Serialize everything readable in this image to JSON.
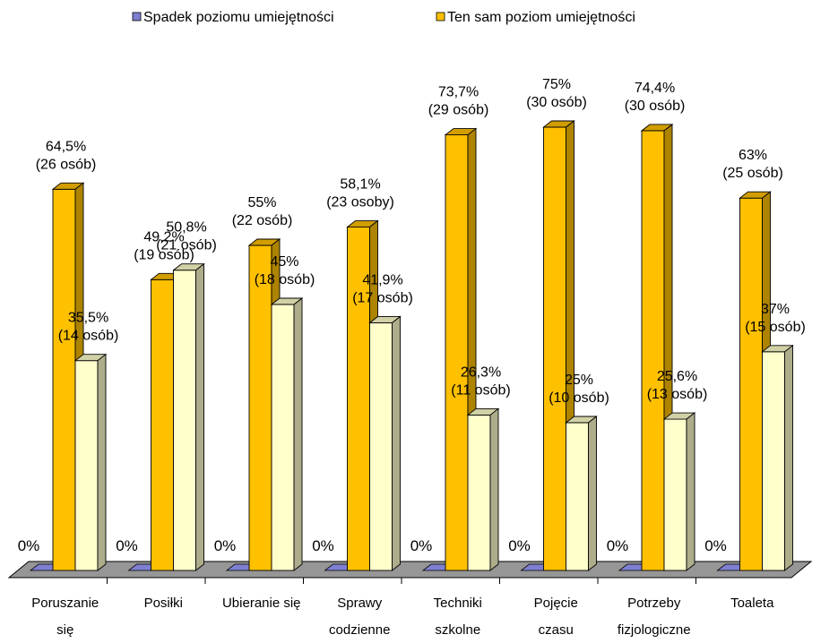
{
  "chart_data": {
    "type": "bar",
    "title": "",
    "xlabel": "",
    "ylabel": "",
    "ylim": [
      0,
      80
    ],
    "grid": false,
    "legend_position": "top",
    "categories": [
      [
        "Poruszanie",
        "się"
      ],
      [
        "Posiłki"
      ],
      [
        "Ubieranie się"
      ],
      [
        "Sprawy",
        "codzienne"
      ],
      [
        "Techniki",
        "szkolne"
      ],
      [
        "Pojęcie",
        "czasu"
      ],
      [
        "Potrzeby",
        "fizjologiczne"
      ],
      [
        "Toaleta"
      ]
    ],
    "series": [
      {
        "name": "Spadek poziomu umiejętności",
        "color": "#7f7fd1",
        "values": [
          0,
          0,
          0,
          0,
          0,
          0,
          0,
          0
        ],
        "labels": [
          [
            "0%"
          ],
          [
            "0%"
          ],
          [
            "0%"
          ],
          [
            "0%"
          ],
          [
            "0%"
          ],
          [
            "0%"
          ],
          [
            "0%"
          ],
          [
            "0%"
          ]
        ]
      },
      {
        "name": "Ten sam poziom umiejętności",
        "color": "#ffc000",
        "values": [
          64.5,
          49.2,
          55,
          58.1,
          73.7,
          75,
          74.4,
          63
        ],
        "labels": [
          [
            "64,5%",
            "(26 osób)"
          ],
          [
            "49,2%",
            "(19 osób)"
          ],
          [
            "55%",
            "(22 osób)"
          ],
          [
            "58,1%",
            "(23 osoby)"
          ],
          [
            "73,7%",
            "(29 osób)"
          ],
          [
            "75%",
            "(30 osób)"
          ],
          [
            "74,4%",
            "(30 osób)"
          ],
          [
            "63%",
            "(25 osób)"
          ]
        ]
      },
      {
        "name": "",
        "color": "#ffffcc",
        "values": [
          35.5,
          50.8,
          45,
          41.9,
          26.3,
          25,
          25.6,
          37
        ],
        "labels": [
          [
            "35,5%",
            "(14 osób)"
          ],
          [
            "50,8%",
            "(21 osób)"
          ],
          [
            "45%",
            "(18 osób)"
          ],
          [
            "41,9%",
            "(17 osób)"
          ],
          [
            "26,3%",
            "(11 osób)"
          ],
          [
            "25%",
            "(10 osób)"
          ],
          [
            "25,6%",
            "(13 osób)"
          ],
          [
            "37%",
            "(15 osób)"
          ]
        ]
      }
    ]
  }
}
